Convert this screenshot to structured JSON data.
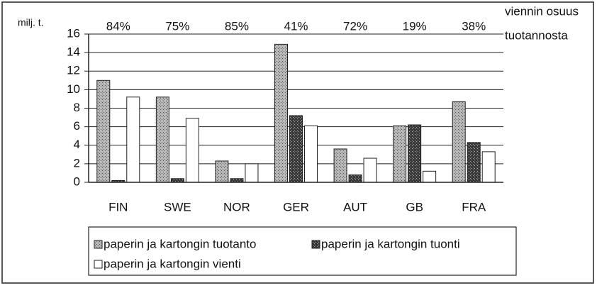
{
  "chart_data": {
    "type": "bar",
    "y_label": "milj. t.",
    "annotation_lines": [
      "viennin osuus",
      "tuotannosta"
    ],
    "group_labels": [
      "84%",
      "75%",
      "85%",
      "41%",
      "72%",
      "19%",
      "38%"
    ],
    "categories": [
      "FIN",
      "SWE",
      "NOR",
      "GER",
      "AUT",
      "GB",
      "FRA"
    ],
    "series": [
      {
        "name": "paperin ja kartongin tuotanto",
        "color": "#b8b8b8",
        "values": [
          11,
          9.2,
          2.3,
          14.9,
          3.6,
          6.1,
          8.7
        ]
      },
      {
        "name": "paperin ja kartongin tuonti",
        "color": "#3a3a3a",
        "values": [
          0.2,
          0.4,
          0.4,
          7.2,
          0.8,
          6.2,
          4.3
        ]
      },
      {
        "name": "paperin ja kartongin vienti",
        "color": "#ffffff",
        "values": [
          9.2,
          6.9,
          2.0,
          6.1,
          2.6,
          1.2,
          3.3
        ]
      }
    ],
    "ylim": [
      0,
      16
    ],
    "yticks": [
      0,
      2,
      4,
      6,
      8,
      10,
      12,
      14,
      16
    ],
    "grid": true
  }
}
